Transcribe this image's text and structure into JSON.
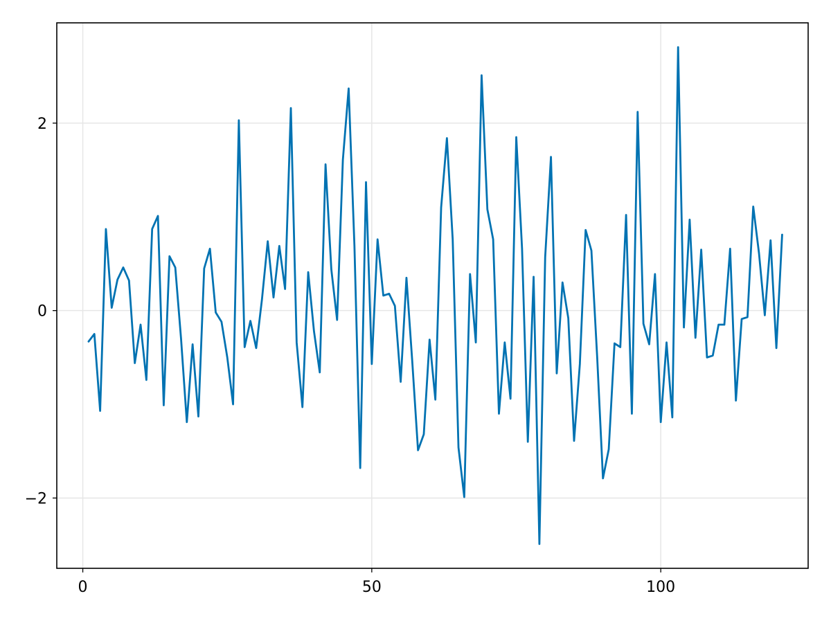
{
  "chart_data": {
    "type": "line",
    "title": "",
    "xlabel": "",
    "ylabel": "",
    "xlim": [
      -4.5,
      125.5
    ],
    "ylim": [
      -2.75,
      3.07
    ],
    "x_ticks": [
      0,
      50,
      100
    ],
    "x_tick_labels": [
      "0",
      "50",
      "100"
    ],
    "y_ticks": [
      -2,
      0,
      2
    ],
    "y_tick_labels": [
      "−2",
      "0",
      "2"
    ],
    "grid": true,
    "line_color": "#0072b2",
    "grid_color": "#e6e6e6",
    "series": [
      {
        "x": [
          1,
          2,
          3,
          4,
          5,
          6,
          7,
          8,
          9,
          10,
          11,
          12,
          13,
          14,
          15,
          16,
          17,
          18,
          19,
          20,
          21,
          22,
          23,
          24,
          25,
          26,
          27,
          28,
          29,
          30,
          31,
          32,
          33,
          34,
          35,
          36,
          37,
          38,
          39,
          40,
          41,
          42,
          43,
          44,
          45,
          46,
          47,
          48,
          49,
          50,
          51,
          52,
          53,
          54,
          55,
          56,
          57,
          58,
          59,
          60,
          61,
          62,
          63,
          64,
          65,
          66,
          67,
          68,
          69,
          70,
          71,
          72,
          73,
          74,
          75,
          76,
          77,
          78,
          79,
          80,
          81,
          82,
          83,
          84,
          85,
          86,
          87,
          88,
          89,
          90,
          91,
          92,
          93,
          94,
          95,
          96,
          97,
          98,
          99,
          100,
          101,
          102,
          103,
          104,
          105,
          106,
          107,
          108,
          109,
          110,
          111,
          112,
          113,
          114,
          115,
          116,
          117,
          118,
          119,
          120,
          121
        ],
        "values": [
          -0.33,
          -0.25,
          -1.07,
          0.87,
          0.03,
          0.33,
          0.46,
          0.32,
          -0.56,
          -0.15,
          -0.74,
          0.87,
          1.01,
          -1.01,
          0.58,
          0.46,
          -0.3,
          -1.19,
          -0.36,
          -1.13,
          0.45,
          0.66,
          -0.02,
          -0.12,
          -0.5,
          -1.0,
          2.03,
          -0.39,
          -0.11,
          -0.4,
          0.12,
          0.74,
          0.14,
          0.69,
          0.23,
          2.16,
          -0.34,
          -1.03,
          0.41,
          -0.22,
          -0.66,
          1.56,
          0.44,
          -0.1,
          1.61,
          2.37,
          0.69,
          -1.68,
          1.37,
          -0.57,
          0.76,
          0.16,
          0.18,
          0.05,
          -0.76,
          0.35,
          -0.54,
          -1.49,
          -1.32,
          -0.31,
          -0.95,
          1.1,
          1.84,
          0.76,
          -1.46,
          -1.99,
          0.39,
          -0.34,
          2.51,
          1.08,
          0.76,
          -1.1,
          -0.34,
          -0.94,
          1.85,
          0.66,
          -1.4,
          0.36,
          -2.49,
          0.57,
          1.64,
          -0.67,
          0.3,
          -0.08,
          -1.39,
          -0.57,
          0.86,
          0.64,
          -0.5,
          -1.79,
          -1.48,
          -0.35,
          -0.39,
          1.02,
          -1.1,
          2.12,
          -0.14,
          -0.36,
          0.39,
          -1.19,
          -0.34,
          -1.14,
          2.81,
          -0.18,
          0.97,
          -0.29,
          0.65,
          -0.5,
          -0.48,
          -0.15,
          -0.15,
          0.66,
          -0.96,
          -0.09,
          -0.07,
          1.11,
          0.61,
          -0.05,
          0.75,
          -0.4,
          0.81
        ]
      }
    ]
  }
}
